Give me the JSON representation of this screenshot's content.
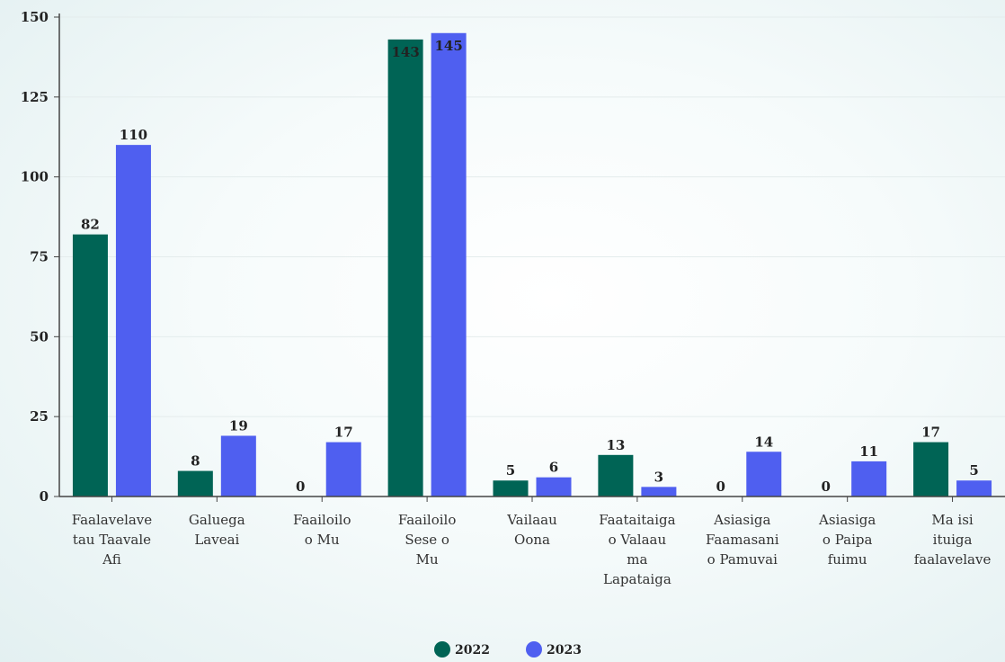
{
  "chart_data": {
    "type": "bar",
    "title": "",
    "xlabel": "",
    "ylabel": "",
    "ylim": [
      0,
      150
    ],
    "yticks": [
      0,
      25,
      50,
      75,
      100,
      125,
      150
    ],
    "grid": true,
    "legend_position": "bottom",
    "categories": [
      [
        "Faalavelave",
        "tau Taavale",
        "Afi"
      ],
      [
        "Galuega",
        "Laveai"
      ],
      [
        "Faailoilo",
        "o Mu"
      ],
      [
        "Faailoilo",
        "Sese o",
        "Mu"
      ],
      [
        "Vailaau",
        "Oona"
      ],
      [
        "Faataitaiga",
        "o Valaau",
        "ma",
        "Lapataiga"
      ],
      [
        "Asiasiga",
        "Faamasani",
        "o Pamuvai"
      ],
      [
        "Asiasiga",
        "o Paipa",
        "fuimu"
      ],
      [
        "Ma isi",
        "ituiga",
        "faalavelave"
      ]
    ],
    "series": [
      {
        "name": "2022",
        "color": "#006455",
        "values": [
          82,
          8,
          0,
          143,
          5,
          13,
          0,
          0,
          17
        ]
      },
      {
        "name": "2023",
        "color": "#4f5ff0",
        "values": [
          110,
          19,
          17,
          145,
          6,
          3,
          14,
          11,
          5
        ]
      }
    ]
  }
}
